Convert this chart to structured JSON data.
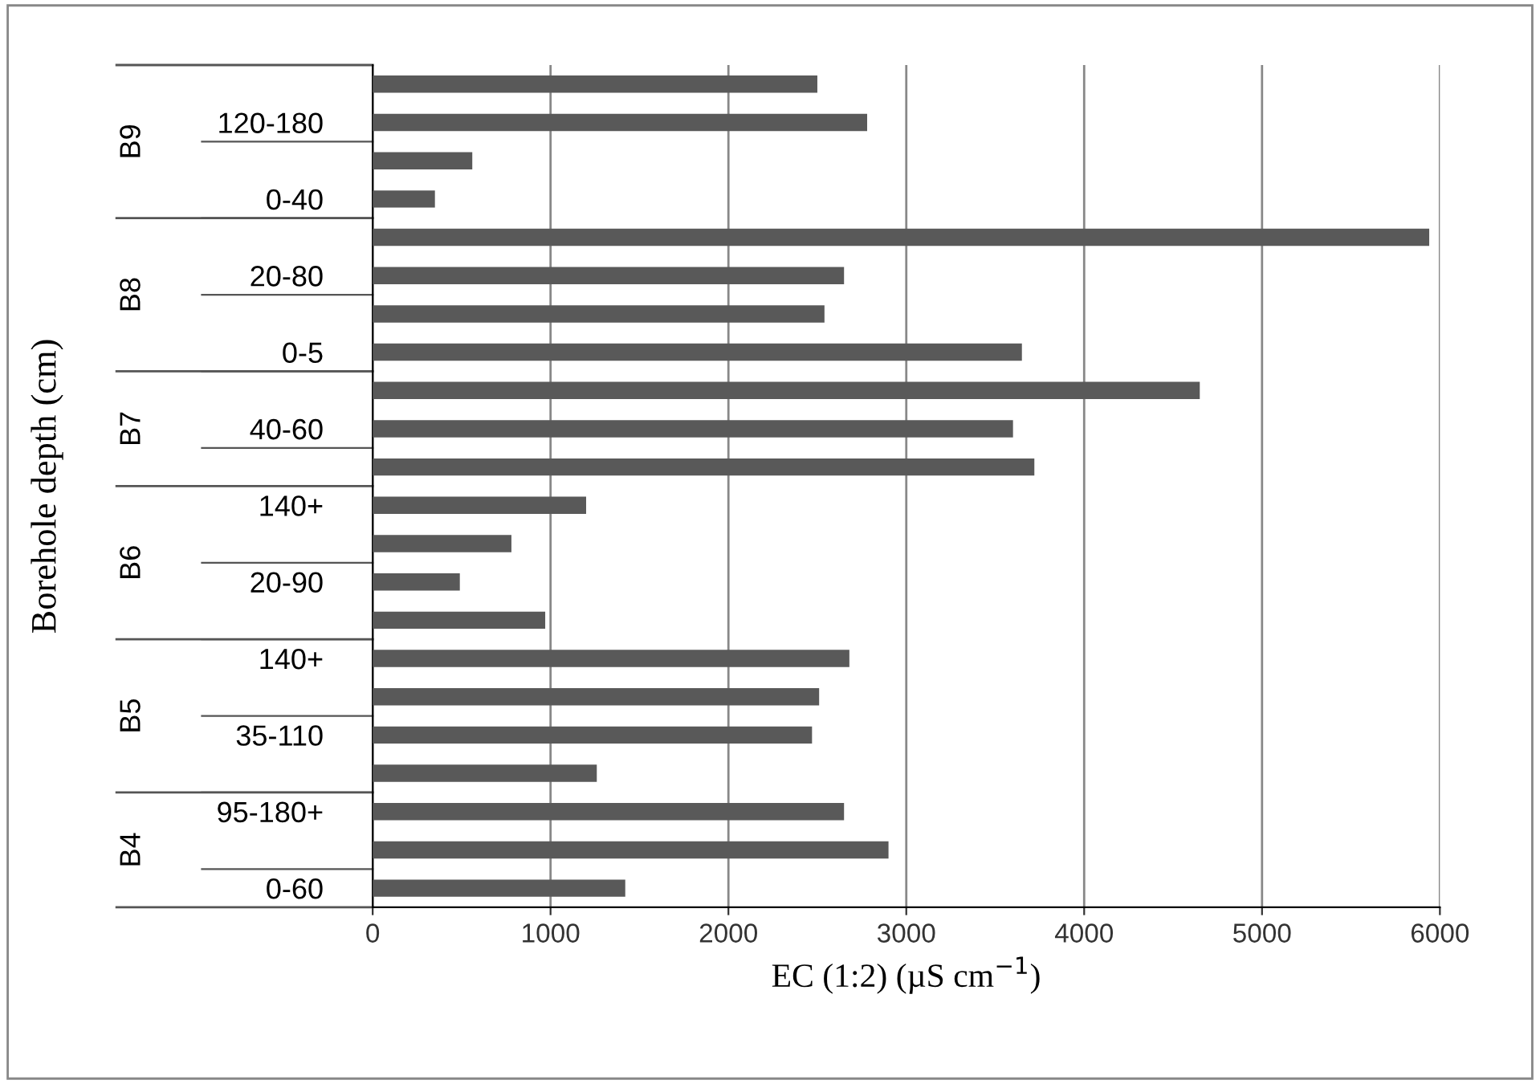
{
  "chart_data": {
    "type": "bar",
    "orientation": "horizontal",
    "xlabel": "EC (1:2) (µS cm$^{−1}$)",
    "ylabel": "Borehole depth (cm)",
    "categories": [
      null,
      "120-180",
      null,
      "0-40",
      null,
      "20-80",
      null,
      "0-5",
      null,
      "40-60",
      null,
      "140+",
      null,
      "20-90",
      null,
      "140+",
      null,
      "35-110",
      null,
      "95-180+",
      null,
      "0-60"
    ],
    "values": [
      2500,
      2780,
      560,
      350,
      5940,
      2650,
      2540,
      3650,
      4650,
      3600,
      3720,
      1200,
      780,
      490,
      970,
      2680,
      2510,
      2470,
      1260,
      2650,
      2900,
      1420
    ],
    "color": "#595959",
    "xlim": [
      0,
      6000
    ],
    "xticks": [
      0,
      1000,
      2000,
      3000,
      4000,
      5000,
      6000
    ],
    "grid": "x",
    "annotations": [
      "B9",
      "B8",
      "B7",
      "B6",
      "B5",
      "B4"
    ]
  }
}
